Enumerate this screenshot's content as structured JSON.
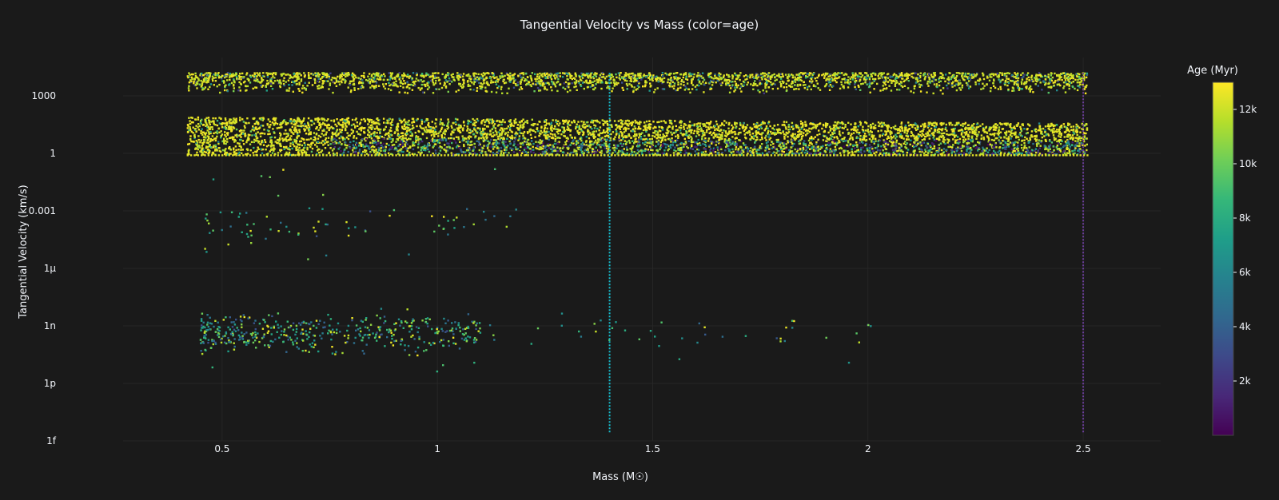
{
  "chart_data": {
    "type": "scatter",
    "title": "Tangential Velocity vs Mass (color=age)",
    "xlabel": "Mass (M☉)",
    "ylabel": "Tangential Velocity (km/s)",
    "x_ticks": [
      0.5,
      1,
      1.5,
      2,
      2.5
    ],
    "x_tick_labels": [
      "0.5",
      "1",
      "1.5",
      "2",
      "2.5"
    ],
    "xlim": [
      0.27,
      2.68
    ],
    "y_scale": "log",
    "ylim_log10": [
      -15,
      5
    ],
    "y_ticks_log10": [
      -15,
      -12,
      -9,
      -6,
      -3,
      0,
      3
    ],
    "y_tick_labels": [
      "1f",
      "1p",
      "1n",
      "1μ",
      "0.001",
      "1",
      "1000"
    ],
    "colorbar": {
      "title": "Age (Myr)",
      "range": [
        0,
        13000
      ],
      "ticks": [
        2000,
        4000,
        6000,
        8000,
        10000,
        12000
      ],
      "tick_labels": [
        "2k",
        "4k",
        "6k",
        "8k",
        "10k",
        "12k"
      ],
      "colorscale": "Viridis"
    },
    "reference_lines": [
      {
        "x": 1.4,
        "color": "#17becf",
        "style": "dotted"
      },
      {
        "x": 2.5,
        "color": "#6a3d9a",
        "style": "dotted"
      }
    ],
    "series": [
      {
        "description": "dense band, high velocity",
        "x_range": [
          0.42,
          2.51
        ],
        "y_log10_range": [
          3.1,
          4.2
        ],
        "dominant_age": 12500
      },
      {
        "description": "dense band, main",
        "x_range": [
          0.42,
          2.51
        ],
        "y_log10_range": [
          -0.1,
          1.9
        ],
        "dominant_age": 12500
      },
      {
        "description": "sparse cluster, low velocity",
        "x_range": [
          0.45,
          2.05
        ],
        "y_log10_range": [
          -11.3,
          -7.8
        ]
      },
      {
        "description": "sparse cluster, mid",
        "x_range": [
          0.45,
          1.25
        ],
        "y_log10_range": [
          -5,
          -1.5
        ]
      }
    ]
  },
  "colors": {
    "background": "#1a1a1a",
    "grid": "#262626",
    "text": "#f2f5fa",
    "viridis_low": "#440154",
    "viridis_high": "#fde725"
  }
}
